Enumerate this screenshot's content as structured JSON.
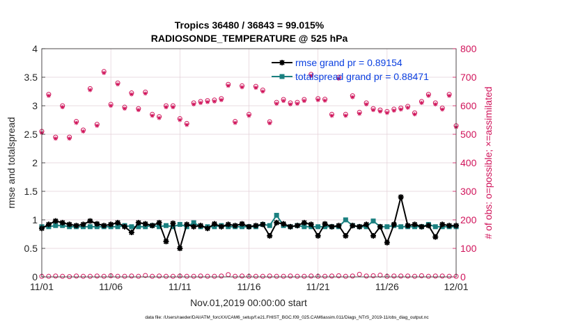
{
  "chart_data": {
    "type": "line",
    "title": [
      "Tropics 36480 / 36843 = 99.015%",
      "RADIOSONDE_TEMPERATURE @ 525 hPa"
    ],
    "xlabel": "Nov.01,2019 00:00:00 start",
    "ylabel": "rmse and totalspread",
    "ylabel_right": "# of obs: o=possible; ×=assimilated",
    "xlim": [
      0,
      30
    ],
    "ylim": [
      0,
      4
    ],
    "ylim_right": [
      0,
      800
    ],
    "xticks": [
      0,
      5,
      10,
      15,
      20,
      25,
      30
    ],
    "xtick_labels": [
      "11/01",
      "11/06",
      "11/11",
      "11/16",
      "11/21",
      "11/26",
      "12/01"
    ],
    "yticks": [
      "0",
      "0.5",
      "1",
      "1.5",
      "2",
      "2.5",
      "3",
      "3.5",
      "4"
    ],
    "yticks_right": [
      "0",
      "100",
      "200",
      "300",
      "400",
      "500",
      "600",
      "700",
      "800"
    ],
    "legend": [
      "rmse grand pr = 0.89154",
      "totalspread grand pr = 0.88471"
    ],
    "legend_position": "top-right",
    "colors": {
      "rmse": "#000000",
      "spread": "#1a8080",
      "obs": "#d0135a",
      "grid": "#e3cfd6"
    },
    "footer": "data file: /Users/raeder/DAI/ATM_forcXX/CAM6_setup/f.e21.FHIST_BGC.f09_025.CAM6assim.011/Diags_NTrS_2019-11/obs_diag_output.nc",
    "x": [
      0,
      0.5,
      1,
      1.5,
      2,
      2.5,
      3,
      3.5,
      4,
      4.5,
      5,
      5.5,
      6,
      6.5,
      7,
      7.5,
      8,
      8.5,
      9,
      9.5,
      10,
      10.5,
      11,
      11.5,
      12,
      12.5,
      13,
      13.5,
      14,
      14.5,
      15,
      15.5,
      16,
      16.5,
      17,
      17.5,
      18,
      18.5,
      19,
      19.5,
      20,
      20.5,
      21,
      21.5,
      22,
      22.5,
      23,
      23.5,
      24,
      24.5,
      25,
      25.5,
      26,
      26.5,
      27,
      27.5,
      28,
      28.5,
      29,
      29.5,
      30
    ],
    "series": [
      {
        "name": "rmse",
        "values": [
          0.85,
          0.92,
          0.98,
          0.95,
          0.92,
          0.9,
          0.92,
          0.98,
          0.93,
          0.9,
          0.92,
          0.95,
          0.88,
          0.78,
          0.95,
          0.93,
          0.9,
          0.95,
          0.62,
          0.94,
          0.5,
          0.92,
          0.88,
          0.9,
          0.85,
          0.93,
          0.88,
          0.92,
          0.9,
          0.93,
          0.88,
          0.9,
          0.92,
          0.72,
          0.95,
          0.93,
          0.88,
          0.9,
          0.95,
          0.92,
          0.72,
          0.93,
          0.88,
          0.9,
          0.72,
          0.9,
          0.88,
          0.92,
          0.72,
          0.88,
          0.6,
          0.92,
          1.4,
          0.9,
          0.92,
          0.88,
          0.9,
          0.7,
          0.92,
          0.9,
          0.9
        ]
      },
      {
        "name": "totalspread",
        "values": [
          0.88,
          0.88,
          0.9,
          0.9,
          0.88,
          0.88,
          0.88,
          0.88,
          0.88,
          0.88,
          0.88,
          0.88,
          0.9,
          0.88,
          0.88,
          0.88,
          0.9,
          0.88,
          0.9,
          0.88,
          0.92,
          0.88,
          0.95,
          0.88,
          0.88,
          0.88,
          0.9,
          0.88,
          0.88,
          0.88,
          0.88,
          0.88,
          0.92,
          0.9,
          1.08,
          0.9,
          0.88,
          0.9,
          0.88,
          0.88,
          0.88,
          0.88,
          0.88,
          0.88,
          1.0,
          0.9,
          0.88,
          0.88,
          0.98,
          0.88,
          0.88,
          0.9,
          0.88,
          0.88,
          0.88,
          0.88,
          0.92,
          0.88,
          0.88,
          0.88,
          0.88
        ]
      },
      {
        "name": "obs_possible",
        "values": [
          510,
          640,
          490,
          600,
          490,
          545,
          515,
          660,
          535,
          720,
          605,
          680,
          595,
          645,
          590,
          648,
          570,
          562,
          600,
          600,
          555,
          538,
          610,
          615,
          618,
          620,
          625,
          675,
          545,
          670,
          570,
          668,
          655,
          544,
          612,
          622,
          610,
          612,
          622,
          710,
          625,
          623,
          570,
          700,
          570,
          635,
          577,
          610,
          590,
          585,
          580,
          588,
          592,
          598,
          575,
          615,
          640,
          610,
          592,
          640,
          530
        ]
      },
      {
        "name": "obs_assimilated",
        "values": [
          505,
          635,
          485,
          595,
          485,
          540,
          510,
          655,
          530,
          715,
          600,
          675,
          590,
          640,
          585,
          643,
          565,
          557,
          595,
          595,
          550,
          533,
          605,
          610,
          613,
          615,
          620,
          670,
          540,
          665,
          565,
          663,
          650,
          539,
          607,
          617,
          605,
          607,
          617,
          705,
          620,
          618,
          565,
          695,
          565,
          630,
          572,
          605,
          585,
          580,
          575,
          583,
          587,
          593,
          570,
          610,
          635,
          605,
          587,
          635,
          525
        ]
      },
      {
        "name": "obs_rejected",
        "values": [
          2,
          2,
          3,
          2,
          1,
          3,
          2,
          2,
          3,
          2,
          4,
          2,
          2,
          3,
          2,
          5,
          2,
          3,
          2,
          2,
          3,
          2,
          2,
          3,
          2,
          2,
          3,
          8,
          2,
          3,
          2,
          2,
          2,
          3,
          2,
          2,
          3,
          2,
          2,
          3,
          2,
          2,
          3,
          4,
          2,
          3,
          9,
          3,
          4,
          6,
          2,
          3,
          3,
          3,
          2,
          4,
          2,
          3,
          3,
          2,
          2
        ]
      }
    ]
  }
}
